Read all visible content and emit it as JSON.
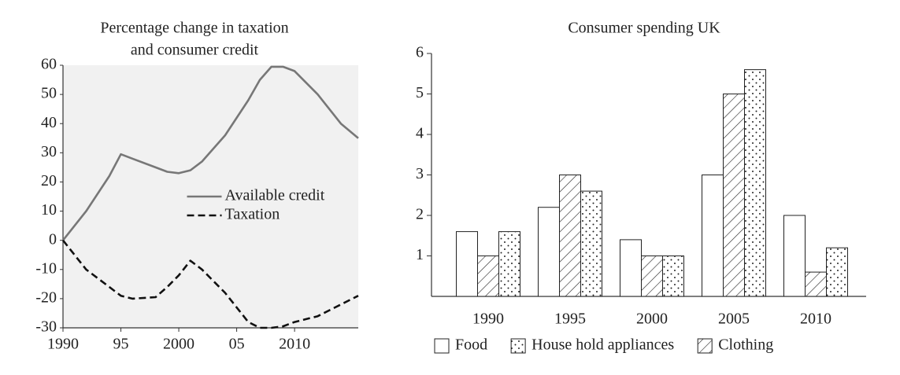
{
  "chart_data": [
    {
      "type": "line",
      "title": [
        "Percentage change in taxation",
        "and consumer credit"
      ],
      "x": [
        1990,
        1992,
        1994,
        1995,
        1996,
        1998,
        1999,
        2000,
        2001,
        2002,
        2004,
        2006,
        2007,
        2008,
        2009,
        2010,
        2012,
        2014,
        2015.5
      ],
      "series": [
        {
          "name": "Available credit",
          "color": "#777777",
          "style": "solid",
          "values": [
            0,
            10,
            22,
            29.5,
            28,
            25,
            23.5,
            23,
            24,
            27,
            36,
            48,
            55,
            59.5,
            59.5,
            58,
            50,
            40,
            35
          ]
        },
        {
          "name": "Taxation",
          "color": "#111111",
          "style": "dashed",
          "values": [
            0,
            -10,
            -16,
            -19,
            -20,
            -19.5,
            -16,
            -12,
            -7,
            -10,
            -18,
            -28,
            -30,
            -30,
            -29.5,
            -28,
            -26,
            -22,
            -19
          ]
        }
      ],
      "xlim": [
        1990,
        2015.5
      ],
      "xticks": [
        1990,
        {
          "value": 1995,
          "label": "95"
        },
        2000,
        {
          "value": 2005,
          "label": "05"
        },
        2010
      ],
      "ylim": [
        -30,
        60
      ],
      "yticks": [
        -30,
        -20,
        -10,
        0,
        10,
        20,
        30,
        40,
        50,
        60
      ],
      "legend": "center-right"
    },
    {
      "type": "bar",
      "title": "Consumer spending UK",
      "categories": [
        "1990",
        "1995",
        "2000",
        "2005",
        "2010"
      ],
      "series": [
        {
          "name": "Food",
          "color": "#ffffff",
          "pattern": "none",
          "values": [
            1.6,
            2.2,
            1.4,
            3,
            2
          ]
        },
        {
          "name": "Clothing",
          "color": "#ffffff",
          "pattern": "hatch",
          "values": [
            1,
            3,
            1,
            5,
            0.6
          ]
        },
        {
          "name": "House hold appliances",
          "color": "#ffffff",
          "pattern": "dots",
          "values": [
            1.6,
            2.6,
            1,
            5.6,
            1.2
          ]
        }
      ],
      "ylim": [
        0,
        6
      ],
      "yticks": [
        1,
        2,
        3,
        4,
        5,
        6
      ],
      "legend": "bottom"
    }
  ]
}
